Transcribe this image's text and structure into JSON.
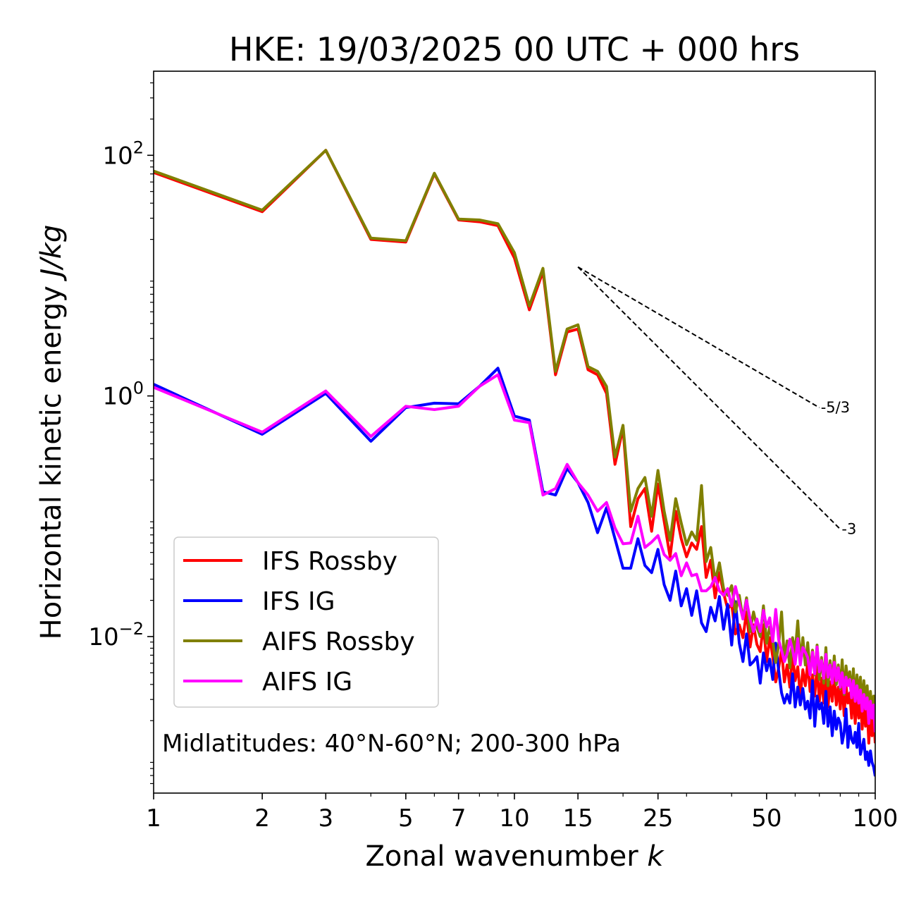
{
  "chart_data": {
    "type": "line",
    "title": "HKE: 19/03/2025 00 UTC + 000 hrs",
    "xlabel": "Zonal wavenumber k",
    "ylabel": "Horizontal kinetic energy J/kg",
    "xscale": "log",
    "yscale": "log",
    "xlim": [
      1,
      100
    ],
    "ylim": [
      0.0005,
      500
    ],
    "x_ticks": [
      1,
      2,
      3,
      5,
      7,
      10,
      15,
      25,
      50,
      100
    ],
    "x_tick_labels": [
      "1",
      "2",
      "3",
      "5",
      "7",
      "10",
      "15",
      "25",
      "50",
      "100"
    ],
    "y_ticks": [
      0.01,
      1,
      100
    ],
    "y_tick_labels": [
      {
        "base": "10",
        "exp": "−2"
      },
      {
        "base": "10",
        "exp": "0"
      },
      {
        "base": "10",
        "exp": "2"
      }
    ],
    "annotation": "Midlatitudes: 40°N-60°N; 200-300 hPa",
    "legend_position": "lower-left",
    "reference_lines": [
      {
        "label": "-5/3",
        "slope": -1.6667,
        "x": [
          15,
          70
        ],
        "y": [
          11.8,
          0.8
        ]
      },
      {
        "label": "-3",
        "slope": -3,
        "x": [
          15,
          80
        ],
        "y": [
          11.8,
          0.078
        ]
      }
    ],
    "series": [
      {
        "name": "IFS Rossby",
        "color": "#ff0000",
        "x": [
          1,
          2,
          3,
          4,
          5,
          6,
          7,
          8,
          9,
          10,
          11,
          12,
          13,
          14,
          15,
          16,
          17,
          18,
          19,
          20,
          21,
          22,
          23,
          24,
          25,
          26,
          27,
          28,
          29,
          30,
          31,
          32,
          33,
          34,
          35,
          36,
          37,
          38,
          39,
          40,
          41,
          42,
          43,
          44,
          45,
          46,
          47,
          48,
          49,
          50,
          51,
          52,
          53,
          54,
          55,
          56,
          57,
          58,
          59,
          60,
          61,
          62,
          63,
          64,
          65,
          66,
          67,
          68,
          69,
          70,
          71,
          72,
          73,
          74,
          75,
          76,
          77,
          78,
          79,
          80,
          81,
          82,
          83,
          84,
          85,
          86,
          87,
          88,
          89,
          90,
          91,
          92,
          93,
          94,
          95,
          96,
          97,
          98,
          99,
          100
        ],
        "y": [
          72,
          34,
          110,
          20,
          19,
          70,
          29,
          28,
          26,
          14,
          5.2,
          10.8,
          1.5,
          3.4,
          3.6,
          1.65,
          1.5,
          1.05,
          0.27,
          0.54,
          0.082,
          0.14,
          0.17,
          0.075,
          0.185,
          0.091,
          0.046,
          0.11,
          0.065,
          0.046,
          0.06,
          0.053,
          0.082,
          0.031,
          0.043,
          0.021,
          0.034,
          0.023,
          0.017,
          0.0185,
          0.0105,
          0.0125,
          0.0098,
          0.016,
          0.0082,
          0.0125,
          0.0086,
          0.0075,
          0.0125,
          0.0062,
          0.0098,
          0.0068,
          0.0042,
          0.0055,
          0.0078,
          0.0042,
          0.0058,
          0.0038,
          0.0072,
          0.0043,
          0.0056,
          0.0032,
          0.0053,
          0.0039,
          0.0061,
          0.0035,
          0.0048,
          0.0032,
          0.0056,
          0.0029,
          0.0045,
          0.0028,
          0.0056,
          0.0026,
          0.0042,
          0.0029,
          0.0047,
          0.0027,
          0.0038,
          0.0025,
          0.0042,
          0.0022,
          0.0039,
          0.0028,
          0.0034,
          0.0021,
          0.0037,
          0.0019,
          0.0032,
          0.0021,
          0.0031,
          0.0017,
          0.0029,
          0.0018,
          0.0026,
          0.0013,
          0.0024,
          0.0015,
          0.0022,
          0.0013
        ]
      },
      {
        "name": "IFS IG",
        "color": "#0000ff",
        "x": [
          1,
          2,
          3,
          4,
          5,
          6,
          7,
          8,
          9,
          10,
          11,
          12,
          13,
          14,
          15,
          16,
          17,
          18,
          19,
          20,
          21,
          22,
          23,
          24,
          25,
          26,
          27,
          28,
          29,
          30,
          31,
          32,
          33,
          34,
          35,
          36,
          37,
          38,
          39,
          40,
          41,
          42,
          43,
          44,
          45,
          46,
          47,
          48,
          49,
          50,
          51,
          52,
          53,
          54,
          55,
          56,
          57,
          58,
          59,
          60,
          61,
          62,
          63,
          64,
          65,
          66,
          67,
          68,
          69,
          70,
          71,
          72,
          73,
          74,
          75,
          76,
          77,
          78,
          79,
          80,
          81,
          82,
          83,
          84,
          85,
          86,
          87,
          88,
          89,
          90,
          91,
          92,
          93,
          94,
          95,
          96,
          97,
          98,
          99,
          100
        ],
        "y": [
          1.25,
          0.48,
          1.05,
          0.42,
          0.8,
          0.87,
          0.86,
          1.2,
          1.7,
          0.68,
          0.63,
          0.16,
          0.15,
          0.25,
          0.19,
          0.13,
          0.073,
          0.118,
          0.065,
          0.037,
          0.037,
          0.065,
          0.039,
          0.034,
          0.053,
          0.027,
          0.02,
          0.035,
          0.018,
          0.025,
          0.015,
          0.024,
          0.013,
          0.011,
          0.0175,
          0.0135,
          0.0215,
          0.0115,
          0.0185,
          0.0085,
          0.0195,
          0.0088,
          0.0062,
          0.0105,
          0.0058,
          0.0062,
          0.0068,
          0.0041,
          0.0073,
          0.0052,
          0.0065,
          0.0044,
          0.0088,
          0.0052,
          0.0034,
          0.0028,
          0.0033,
          0.0028,
          0.0049,
          0.0026,
          0.0038,
          0.0027,
          0.0037,
          0.0025,
          0.0029,
          0.0021,
          0.0043,
          0.0018,
          0.0032,
          0.0025,
          0.0028,
          0.0019,
          0.0035,
          0.0018,
          0.0026,
          0.0015,
          0.0024,
          0.0017,
          0.0021,
          0.0019,
          0.0013,
          0.0016,
          0.0025,
          0.0012,
          0.0018,
          0.0014,
          0.0013,
          0.0016,
          0.0012,
          0.0019,
          0.00105,
          0.0012,
          0.0014,
          0.00095,
          0.0011,
          0.00085,
          0.00112,
          0.0009,
          0.00082,
          0.00069
        ]
      },
      {
        "name": "AIFS Rossby",
        "color": "#808000",
        "x": [
          1,
          2,
          3,
          4,
          5,
          6,
          7,
          8,
          9,
          10,
          11,
          12,
          13,
          14,
          15,
          16,
          17,
          18,
          19,
          20,
          21,
          22,
          23,
          24,
          25,
          26,
          27,
          28,
          29,
          30,
          31,
          32,
          33,
          34,
          35,
          36,
          37,
          38,
          39,
          40,
          41,
          42,
          43,
          44,
          45,
          46,
          47,
          48,
          49,
          50,
          51,
          52,
          53,
          54,
          55,
          56,
          57,
          58,
          59,
          60,
          61,
          62,
          63,
          64,
          65,
          66,
          67,
          68,
          69,
          70,
          71,
          72,
          73,
          74,
          75,
          76,
          77,
          78,
          79,
          80,
          81,
          82,
          83,
          84,
          85,
          86,
          87,
          88,
          89,
          90,
          91,
          92,
          93,
          94,
          95,
          96,
          97,
          98,
          99,
          100
        ],
        "y": [
          74,
          35,
          110,
          20.5,
          19.5,
          71,
          29.5,
          29,
          27,
          15.5,
          5.6,
          11.5,
          1.6,
          3.6,
          3.9,
          1.75,
          1.6,
          1.2,
          0.31,
          0.57,
          0.11,
          0.17,
          0.21,
          0.1,
          0.24,
          0.11,
          0.063,
          0.14,
          0.088,
          0.058,
          0.074,
          0.063,
          0.18,
          0.042,
          0.055,
          0.029,
          0.041,
          0.025,
          0.022,
          0.0265,
          0.016,
          0.022,
          0.014,
          0.021,
          0.011,
          0.016,
          0.012,
          0.01,
          0.018,
          0.0088,
          0.012,
          0.0092,
          0.0061,
          0.0085,
          0.016,
          0.0065,
          0.0092,
          0.0055,
          0.0098,
          0.0074,
          0.0135,
          0.0062,
          0.0098,
          0.0058,
          0.0089,
          0.0051,
          0.0077,
          0.0048,
          0.0085,
          0.0044,
          0.0067,
          0.0041,
          0.0081,
          0.0039,
          0.0063,
          0.0043,
          0.0069,
          0.004,
          0.0058,
          0.0037,
          0.0064,
          0.0033,
          0.0057,
          0.0042,
          0.0051,
          0.0031,
          0.0054,
          0.0029,
          0.0048,
          0.0032,
          0.0046,
          0.0026,
          0.0043,
          0.0027,
          0.0039,
          0.002,
          0.0035,
          0.0023,
          0.0032,
          0.0019
        ]
      },
      {
        "name": "AIFS IG",
        "color": "#ff00ff",
        "x": [
          1,
          2,
          3,
          4,
          5,
          6,
          7,
          8,
          9,
          10,
          11,
          12,
          13,
          14,
          15,
          16,
          17,
          18,
          19,
          20,
          21,
          22,
          23,
          24,
          25,
          26,
          27,
          28,
          29,
          30,
          31,
          32,
          33,
          34,
          35,
          36,
          37,
          38,
          39,
          40,
          41,
          42,
          43,
          44,
          45,
          46,
          47,
          48,
          49,
          50,
          51,
          52,
          53,
          54,
          55,
          56,
          57,
          58,
          59,
          60,
          61,
          62,
          63,
          64,
          65,
          66,
          67,
          68,
          69,
          70,
          71,
          72,
          73,
          74,
          75,
          76,
          77,
          78,
          79,
          80,
          81,
          82,
          83,
          84,
          85,
          86,
          87,
          88,
          89,
          90,
          91,
          92,
          93,
          94,
          95,
          96,
          97,
          98,
          99,
          100
        ],
        "y": [
          1.18,
          0.5,
          1.1,
          0.46,
          0.82,
          0.77,
          0.82,
          1.2,
          1.5,
          0.63,
          0.6,
          0.15,
          0.17,
          0.27,
          0.19,
          0.15,
          0.11,
          0.13,
          0.08,
          0.059,
          0.06,
          0.1,
          0.055,
          0.061,
          0.069,
          0.048,
          0.043,
          0.049,
          0.032,
          0.041,
          0.032,
          0.033,
          0.024,
          0.024,
          0.026,
          0.031,
          0.024,
          0.022,
          0.025,
          0.018,
          0.026,
          0.019,
          0.014,
          0.02,
          0.014,
          0.011,
          0.014,
          0.011,
          0.0165,
          0.012,
          0.0143,
          0.0091,
          0.0168,
          0.0094,
          0.0077,
          0.0062,
          0.0072,
          0.0095,
          0.0078,
          0.0059,
          0.0096,
          0.0058,
          0.0081,
          0.0074,
          0.0067,
          0.0048,
          0.0074,
          0.0049,
          0.0082,
          0.0051,
          0.0063,
          0.0045,
          0.0071,
          0.0046,
          0.0058,
          0.0041,
          0.0061,
          0.0043,
          0.0055,
          0.0038,
          0.005,
          0.0034,
          0.0046,
          0.0039,
          0.0044,
          0.0031,
          0.0043,
          0.0029,
          0.0039,
          0.0028,
          0.0036,
          0.0024,
          0.0033,
          0.0025,
          0.0031,
          0.0019,
          0.0029,
          0.0021,
          0.0027,
          0.0016
        ]
      }
    ]
  }
}
